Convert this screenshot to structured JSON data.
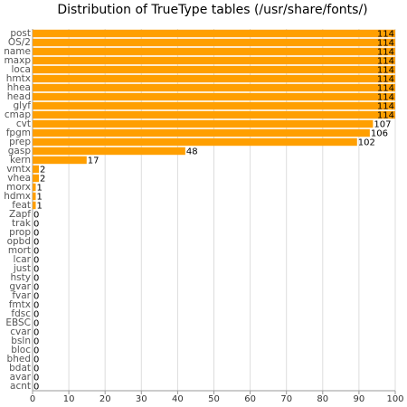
{
  "chart_data": {
    "type": "bar",
    "orientation": "horizontal",
    "title": "Distribution of TrueType tables (/usr/share/fonts/)",
    "categories": [
      "post",
      "OS/2",
      "name",
      "maxp",
      "loca",
      "hmtx",
      "hhea",
      "head",
      "glyf",
      "cmap",
      "cvt",
      "fpgm",
      "prep",
      "gasp",
      "kern",
      "vmtx",
      "vhea",
      "morx",
      "hdmx",
      "feat",
      "Zapf",
      "trak",
      "prop",
      "opbd",
      "mort",
      "lcar",
      "just",
      "hsty",
      "gvar",
      "fvar",
      "fmtx",
      "fdsc",
      "EBSC",
      "cvar",
      "bsln",
      "bloc",
      "bhed",
      "bdat",
      "avar",
      "acnt"
    ],
    "values": [
      114,
      114,
      114,
      114,
      114,
      114,
      114,
      114,
      114,
      114,
      107,
      106,
      102,
      48,
      17,
      2,
      2,
      1,
      1,
      1,
      0,
      0,
      0,
      0,
      0,
      0,
      0,
      0,
      0,
      0,
      0,
      0,
      0,
      0,
      0,
      0,
      0,
      0,
      0,
      0
    ],
    "color": "#ff9f00",
    "xlim": [
      0,
      114
    ],
    "xticks": [
      {
        "value": 0,
        "label": "0"
      },
      {
        "value": 11.4,
        "label": "10"
      },
      {
        "value": 22.8,
        "label": "20"
      },
      {
        "value": 34.2,
        "label": "30"
      },
      {
        "value": 45.6,
        "label": "40"
      },
      {
        "value": 57,
        "label": "50"
      },
      {
        "value": 68.4,
        "label": "60"
      },
      {
        "value": 79.8,
        "label": "70"
      },
      {
        "value": 91.2,
        "label": "80"
      },
      {
        "value": 102.6,
        "label": "90"
      },
      {
        "value": 114,
        "label": "100"
      }
    ],
    "grid": true
  }
}
